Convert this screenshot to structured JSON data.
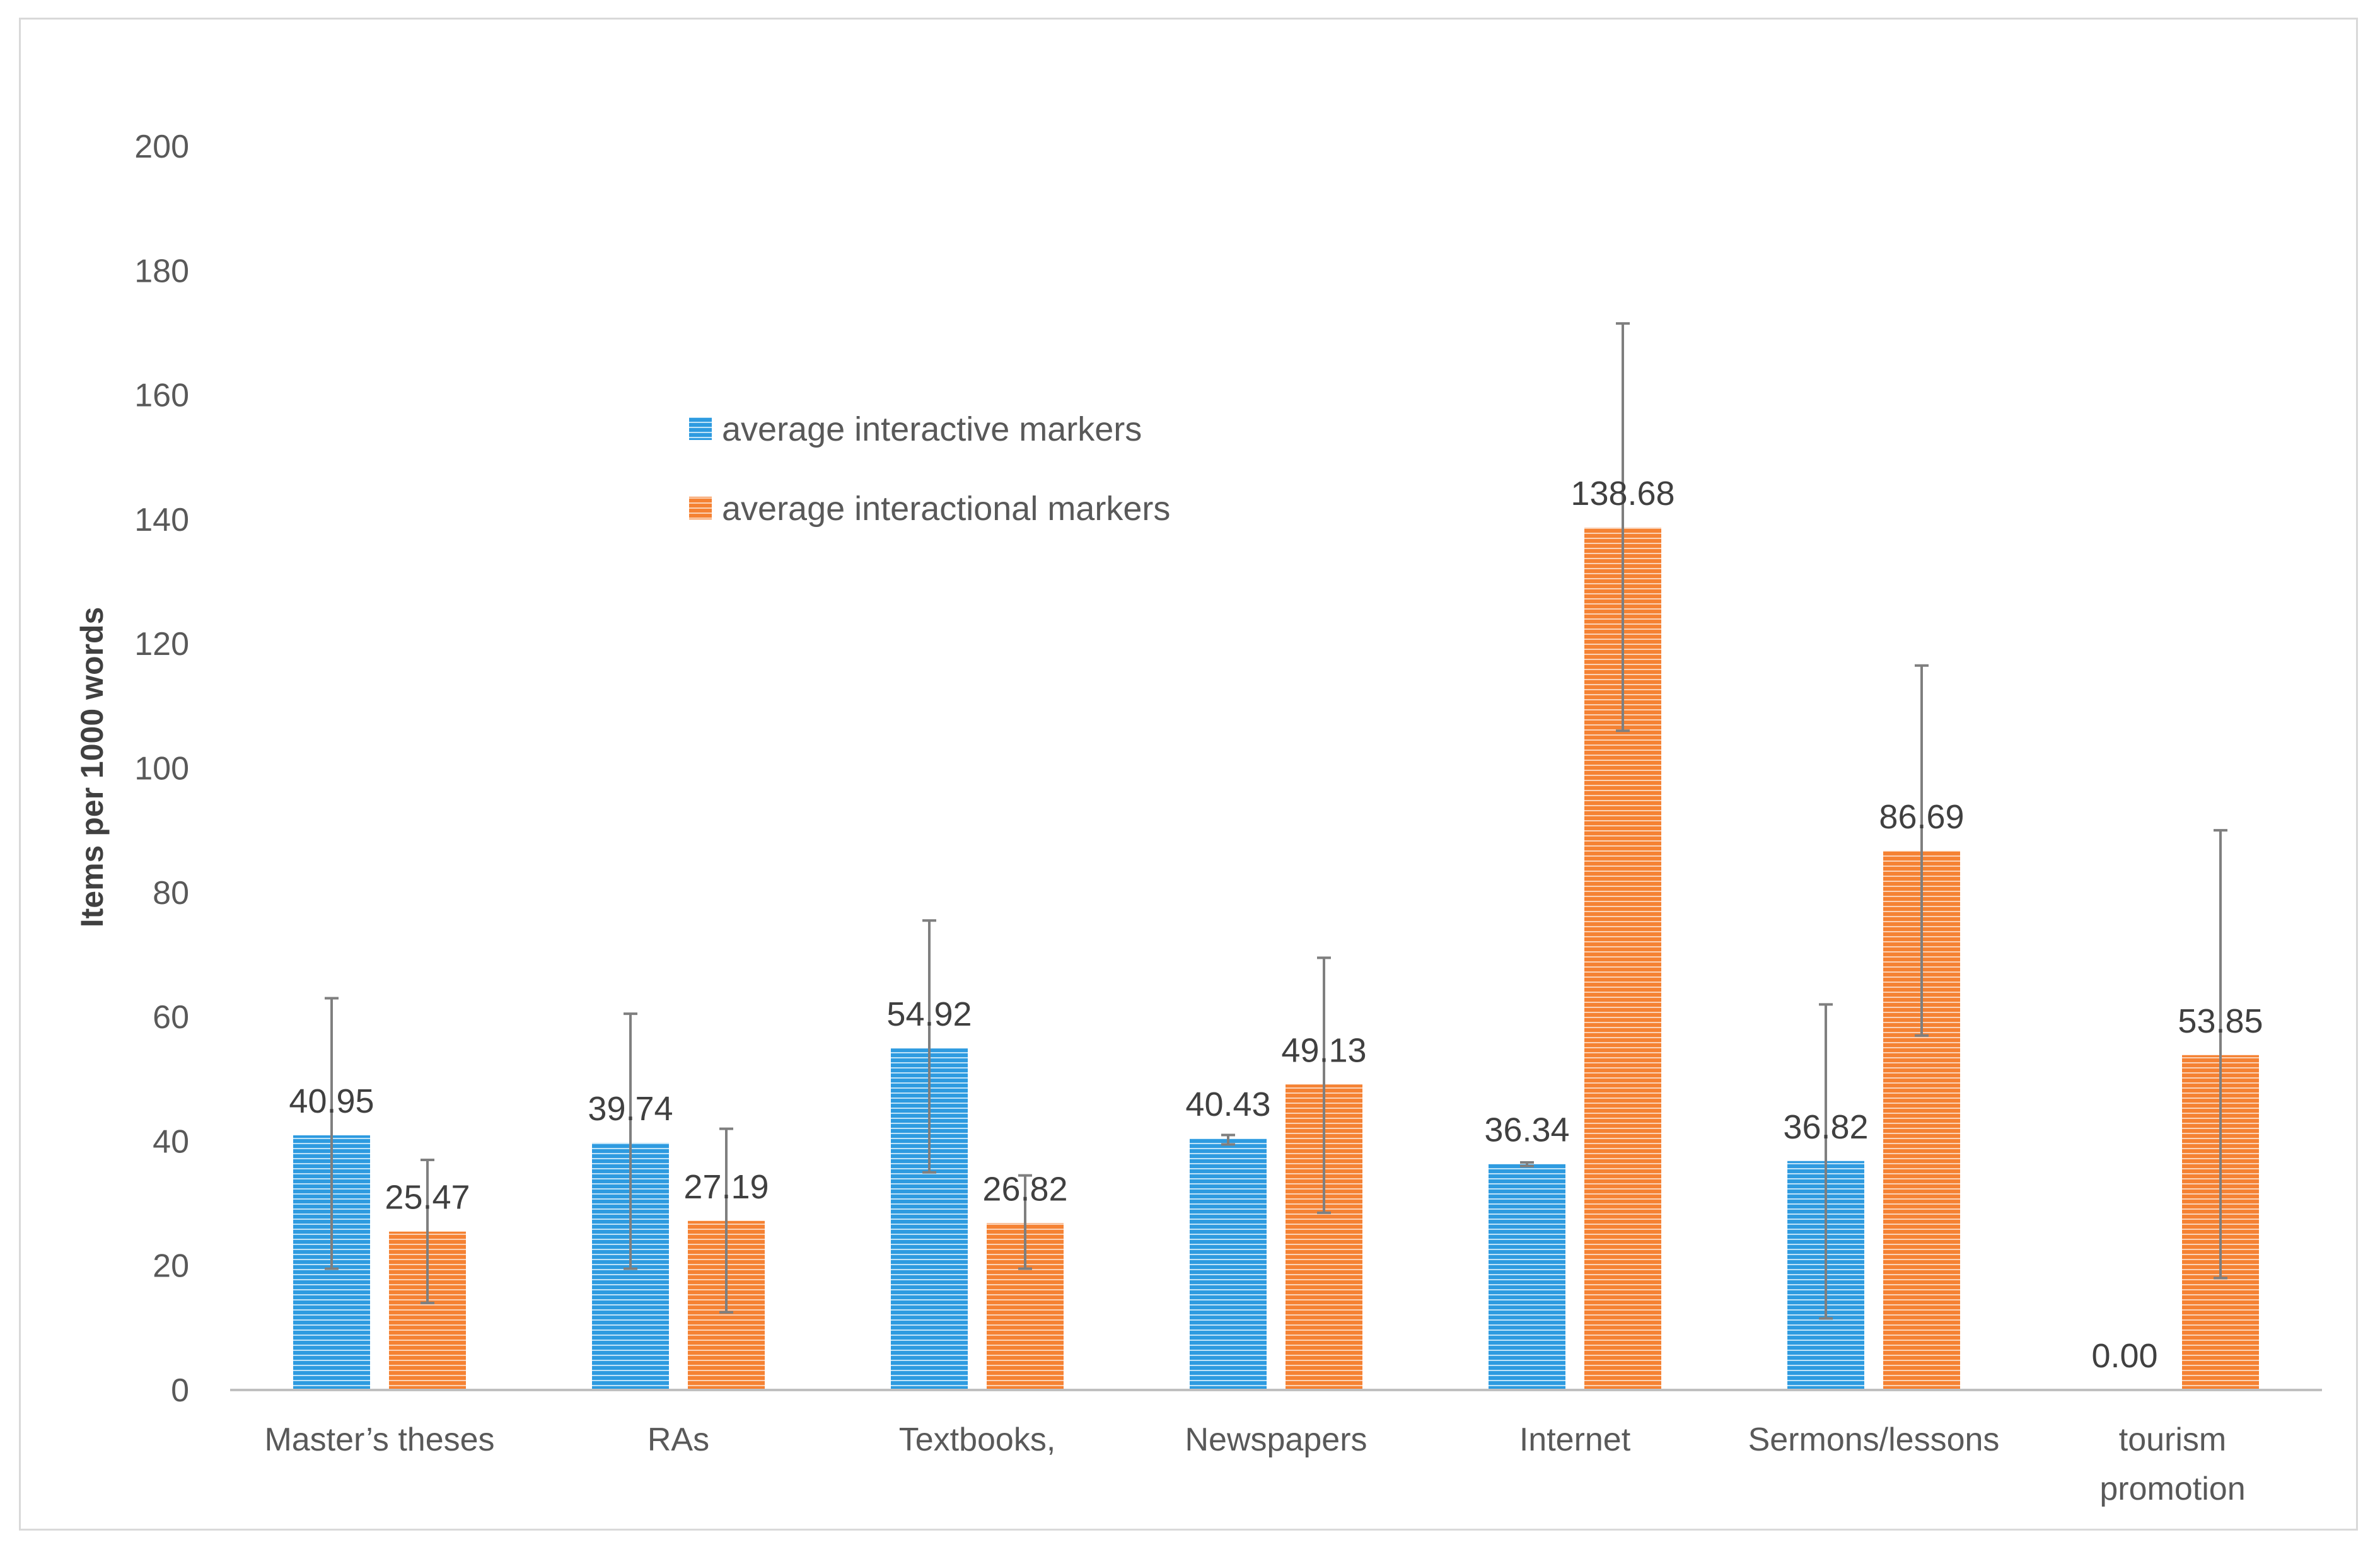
{
  "chart_data": {
    "type": "bar",
    "title": "",
    "xlabel": "",
    "ylabel": "Items per 1000 words",
    "ylim": [
      0,
      200
    ],
    "ytick_step": 20,
    "grid": false,
    "legend_position": "upper-left-inside",
    "categories": [
      [
        "Master’s theses"
      ],
      [
        "RAs"
      ],
      [
        "Textbooks,"
      ],
      [
        "Newspapers"
      ],
      [
        "Internet"
      ],
      [
        "Sermons/lessons"
      ],
      [
        "tourism",
        "promotion"
      ]
    ],
    "series": [
      {
        "name": "average interactive markers",
        "color": "#2e9be0",
        "values": [
          40.95,
          39.74,
          54.92,
          40.43,
          36.34,
          36.82,
          0.0
        ],
        "labels": [
          "40.95",
          "39.74",
          "54.92",
          "40.43",
          "36.34",
          "36.82",
          "0.00"
        ],
        "error_low": [
          19.5,
          19.5,
          35.0,
          39.5,
          36.0,
          11.5,
          null
        ],
        "error_high": [
          63.0,
          60.5,
          75.5,
          41.0,
          36.6,
          62.0,
          null
        ]
      },
      {
        "name": "average interactional markers",
        "color": "#f58233",
        "values": [
          25.47,
          27.19,
          26.82,
          49.13,
          138.68,
          86.69,
          53.85
        ],
        "labels": [
          "25.47",
          "27.19",
          "26.82",
          "49.13",
          "138.68",
          "86.69",
          "53.85"
        ],
        "error_low": [
          14.0,
          12.5,
          19.5,
          28.5,
          106.0,
          57.0,
          18.0
        ],
        "error_high": [
          37.0,
          42.0,
          34.5,
          69.5,
          171.5,
          116.5,
          90.0
        ]
      }
    ]
  }
}
